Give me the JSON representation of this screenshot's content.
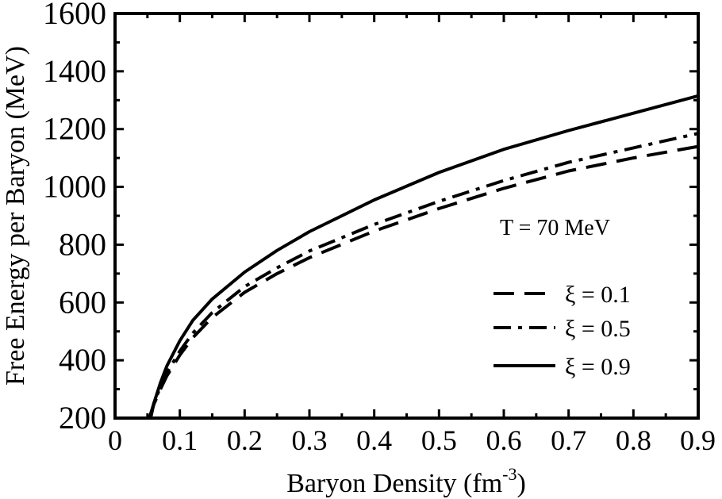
{
  "chart_data": {
    "type": "line",
    "xlabel": "Baryon Density (fm",
    "xlabel_sup": "-3",
    "xlabel_close": ")",
    "ylabel": "Free Energy per Baryon (MeV)",
    "xlim": [
      0,
      0.9
    ],
    "ylim": [
      200,
      1600
    ],
    "xticks": [
      0,
      0.1,
      0.2,
      0.3,
      0.4,
      0.5,
      0.6,
      0.7,
      0.8,
      0.9
    ],
    "xtick_labels": [
      "0",
      "0.1",
      "0.2",
      "0.3",
      "0.4",
      "0.5",
      "0.6",
      "0.7",
      "0.8",
      "0.9"
    ],
    "yticks": [
      200,
      400,
      600,
      800,
      1000,
      1200,
      1400,
      1600
    ],
    "ytick_labels": [
      "200",
      "400",
      "600",
      "800",
      "1000",
      "1200",
      "1400",
      "1600"
    ],
    "annotation": "T = 70 MeV",
    "grid": false,
    "legend_position": "right",
    "series": [
      {
        "name": "ξ = 0.1",
        "style": "dashed",
        "color": "#000000",
        "x": [
          0.053,
          0.06,
          0.07,
          0.08,
          0.1,
          0.12,
          0.15,
          0.2,
          0.25,
          0.3,
          0.4,
          0.5,
          0.6,
          0.7,
          0.8,
          0.9
        ],
        "y": [
          200,
          248,
          300,
          346,
          418,
          478,
          548,
          635,
          700,
          755,
          847,
          925,
          995,
          1055,
          1100,
          1140
        ]
      },
      {
        "name": "ξ = 0.5",
        "style": "dashdot",
        "color": "#000000",
        "x": [
          0.053,
          0.06,
          0.07,
          0.08,
          0.1,
          0.12,
          0.15,
          0.2,
          0.25,
          0.3,
          0.4,
          0.5,
          0.6,
          0.7,
          0.8,
          0.9
        ],
        "y": [
          200,
          252,
          308,
          356,
          432,
          494,
          565,
          655,
          720,
          778,
          870,
          950,
          1022,
          1085,
          1135,
          1185
        ]
      },
      {
        "name": "ξ = 0.9",
        "style": "solid",
        "color": "#000000",
        "x": [
          0.055,
          0.06,
          0.07,
          0.08,
          0.1,
          0.12,
          0.15,
          0.2,
          0.25,
          0.3,
          0.4,
          0.5,
          0.6,
          0.7,
          0.8,
          0.9
        ],
        "y": [
          200,
          252,
          322,
          380,
          468,
          538,
          612,
          705,
          780,
          845,
          955,
          1050,
          1130,
          1195,
          1255,
          1315
        ]
      }
    ]
  }
}
